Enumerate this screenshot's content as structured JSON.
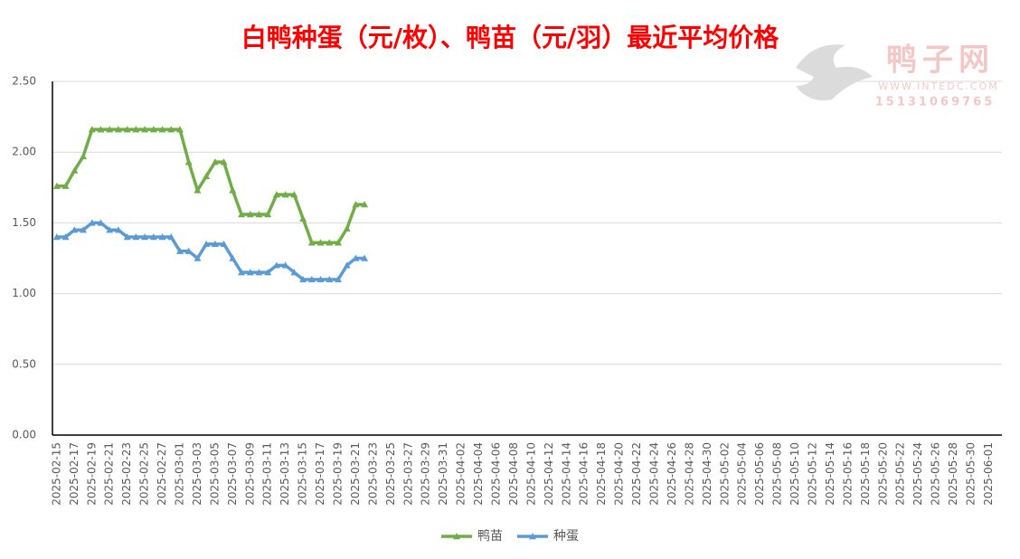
{
  "chart_data": {
    "type": "line",
    "title": "白鸭种蛋（元/枚）、鸭苗（元/羽）最近平均价格",
    "watermark": {
      "brand": "鸭子网",
      "url": "WWW.INTEDC.COM",
      "phone": "15131069765"
    },
    "categories": [
      "2025-02-15",
      null,
      "2025-02-17",
      null,
      "2025-02-19",
      null,
      "2025-02-21",
      null,
      "2025-02-23",
      null,
      "2025-02-25",
      null,
      "2025-02-27",
      null,
      "2025-03-01",
      null,
      "2025-03-03",
      null,
      "2025-03-05",
      null,
      "2025-03-07",
      null,
      "2025-03-09",
      null,
      "2025-03-11",
      null,
      "2025-03-13",
      null,
      "2025-03-15",
      null,
      "2025-03-17",
      null,
      "2025-03-19",
      null,
      "2025-03-21",
      null,
      "2025-03-23",
      null,
      "2025-03-25",
      null,
      "2025-03-27",
      null,
      "2025-03-29",
      null,
      "2025-03-31",
      null,
      "2025-04-02",
      null,
      "2025-04-04",
      null,
      "2025-04-06",
      null,
      "2025-04-08",
      null,
      "2025-04-10",
      null,
      "2025-04-12",
      null,
      "2025-04-14",
      null,
      "2025-04-16",
      null,
      "2025-04-18",
      null,
      "2025-04-20",
      null,
      "2025-04-22",
      null,
      "2025-04-24",
      null,
      "2025-04-26",
      null,
      "2025-04-28",
      null,
      "2025-04-30",
      null,
      "2025-05-02",
      null,
      "2025-05-04",
      null,
      "2025-05-06",
      null,
      "2025-05-08",
      null,
      "2025-05-10",
      null,
      "2025-05-12",
      null,
      "2025-05-14",
      null,
      "2025-05-16",
      null,
      "2025-05-18",
      null,
      "2025-05-20",
      null,
      "2025-05-22",
      null,
      "2025-05-24",
      null,
      "2025-05-26",
      null,
      "2025-05-28",
      null,
      "2025-05-30",
      null,
      "2025-06-01",
      null
    ],
    "series": [
      {
        "name": "鸭苗",
        "color": "#70ad47",
        "values": [
          1.76,
          1.76,
          1.87,
          1.97,
          2.16,
          2.16,
          2.16,
          2.16,
          2.16,
          2.16,
          2.16,
          2.16,
          2.16,
          2.16,
          2.16,
          1.93,
          1.73,
          1.83,
          1.93,
          1.93,
          1.73,
          1.56,
          1.56,
          1.56,
          1.56,
          1.7,
          1.7,
          1.7,
          1.53,
          1.36,
          1.36,
          1.36,
          1.36,
          1.46,
          1.63,
          1.63,
          null,
          null,
          null,
          null,
          null,
          null,
          null,
          null,
          null,
          null,
          null,
          null,
          null,
          null,
          null,
          null,
          null,
          null,
          null,
          null,
          null,
          null,
          null,
          null,
          null,
          null,
          null,
          null,
          null,
          null,
          null,
          null,
          null,
          null,
          null,
          null,
          null,
          null,
          null,
          null,
          null,
          null,
          null,
          null,
          null,
          null,
          null,
          null,
          null,
          null,
          null,
          null,
          null,
          null,
          null,
          null,
          null,
          null,
          null,
          null,
          null,
          null,
          null,
          null,
          null,
          null,
          null,
          null,
          null,
          null,
          null,
          null
        ]
      },
      {
        "name": "种蛋",
        "color": "#5b9bd5",
        "values": [
          1.4,
          1.4,
          1.45,
          1.45,
          1.5,
          1.5,
          1.45,
          1.45,
          1.4,
          1.4,
          1.4,
          1.4,
          1.4,
          1.4,
          1.3,
          1.3,
          1.25,
          1.35,
          1.35,
          1.35,
          1.25,
          1.15,
          1.15,
          1.15,
          1.15,
          1.2,
          1.2,
          1.15,
          1.1,
          1.1,
          1.1,
          1.1,
          1.1,
          1.2,
          1.25,
          1.25,
          null,
          null,
          null,
          null,
          null,
          null,
          null,
          null,
          null,
          null,
          null,
          null,
          null,
          null,
          null,
          null,
          null,
          null,
          null,
          null,
          null,
          null,
          null,
          null,
          null,
          null,
          null,
          null,
          null,
          null,
          null,
          null,
          null,
          null,
          null,
          null,
          null,
          null,
          null,
          null,
          null,
          null,
          null,
          null,
          null,
          null,
          null,
          null,
          null,
          null,
          null,
          null,
          null,
          null,
          null,
          null,
          null,
          null,
          null,
          null,
          null,
          null,
          null,
          null,
          null,
          null,
          null,
          null,
          null,
          null,
          null,
          null
        ]
      }
    ],
    "ylim": [
      0,
      2.5
    ],
    "yticks": [
      {
        "value": 0,
        "label": "0.00"
      },
      {
        "value": 0.5,
        "label": "0.50"
      },
      {
        "value": 1,
        "label": "1.00"
      },
      {
        "value": 1.5,
        "label": "1.50"
      },
      {
        "value": 2,
        "label": "2.00"
      },
      {
        "value": 2.5,
        "label": "2.50"
      }
    ],
    "grid": true,
    "legend": "bottom"
  }
}
